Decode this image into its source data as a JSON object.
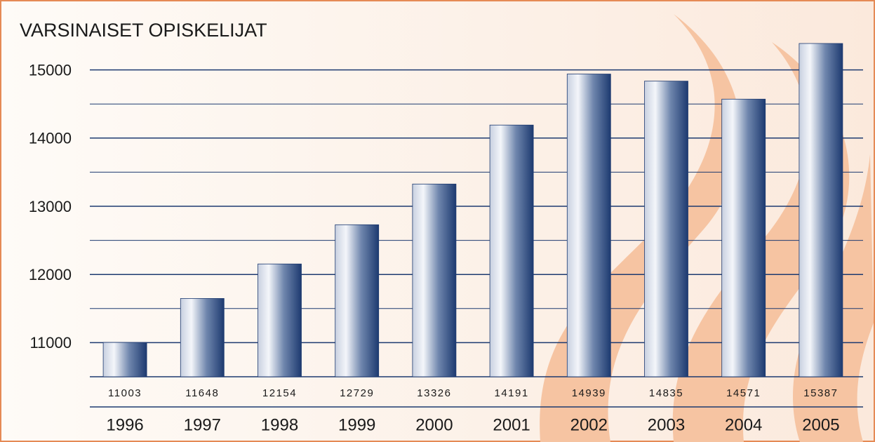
{
  "chart_data": {
    "type": "bar",
    "title": "VARSINAISET OPISKELIJAT",
    "categories": [
      "1996",
      "1997",
      "1998",
      "1999",
      "2000",
      "2001",
      "2002",
      "2003",
      "2004",
      "2005"
    ],
    "values": [
      11003,
      11648,
      12154,
      12729,
      13326,
      14191,
      14939,
      14835,
      14571,
      15387
    ],
    "color": "#1d3a70",
    "ylim": [
      10500,
      15500
    ],
    "yticks": [
      11000,
      12000,
      13000,
      14000,
      15000
    ],
    "minor_yticks": [
      11500,
      12500,
      13500,
      14500
    ],
    "grid": true
  }
}
